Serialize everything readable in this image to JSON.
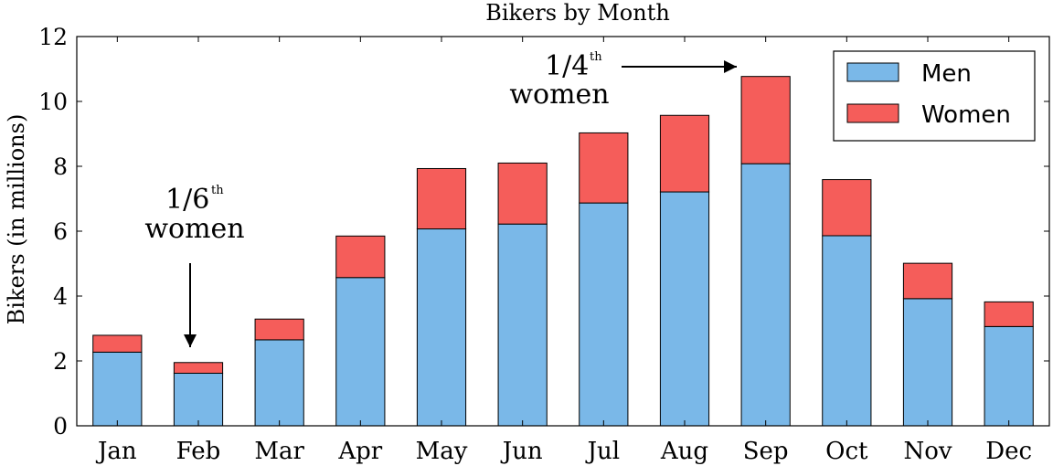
{
  "chart_data": {
    "type": "bar",
    "stacked": true,
    "title": "Bikers by Month",
    "xlabel": "",
    "ylabel": "Bikers (in millions)",
    "ylim": [
      0,
      12
    ],
    "yticks": [
      0,
      2,
      4,
      6,
      8,
      10,
      12
    ],
    "categories": [
      "Jan",
      "Feb",
      "Mar",
      "Apr",
      "May",
      "Jun",
      "Jul",
      "Aug",
      "Sep",
      "Oct",
      "Nov",
      "Dec"
    ],
    "series": [
      {
        "name": "Men",
        "color": "#7ab8e8",
        "values": [
          2.27,
          1.62,
          2.65,
          4.57,
          6.07,
          6.22,
          6.87,
          7.21,
          8.08,
          5.86,
          3.92,
          3.06
        ]
      },
      {
        "name": "Women",
        "color": "#f55d5a",
        "values": [
          0.52,
          0.33,
          0.64,
          1.28,
          1.86,
          1.88,
          2.16,
          2.36,
          2.69,
          1.73,
          1.09,
          0.76
        ]
      }
    ],
    "legend_position": "top-right",
    "grid": false,
    "annotations": [
      {
        "fraction": "1/4",
        "superscript": "th",
        "second_line": "women",
        "target_category": "Sep"
      },
      {
        "fraction": "1/6",
        "superscript": "th",
        "second_line": "women",
        "target_category": "Feb"
      }
    ]
  }
}
